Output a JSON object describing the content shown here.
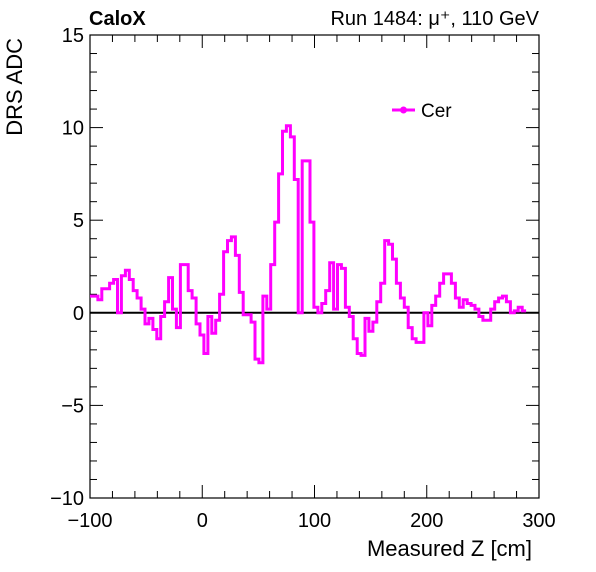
{
  "header": {
    "experiment": "CaloX",
    "run_info": "Run 1484:   μ⁺, 110 GeV"
  },
  "colors": {
    "series": "#ff00ff",
    "axis": "#000000",
    "zero_line": "#000000"
  },
  "chart_data": {
    "type": "line",
    "style": "step-histogram",
    "xlabel": "Measured Z [cm]",
    "ylabel": "DRS ADC",
    "xlim": [
      -100,
      300
    ],
    "ylim": [
      -10,
      15
    ],
    "xticks": [
      "−100",
      "0",
      "100",
      "200",
      "300"
    ],
    "yticks": [
      "−10",
      "−5",
      "0",
      "5",
      "10",
      "15"
    ],
    "xtick_values": [
      -100,
      0,
      100,
      200,
      300
    ],
    "ytick_values": [
      -10,
      -5,
      0,
      5,
      10,
      15
    ],
    "grid": false,
    "zero_line": true,
    "legend_position": "top-right",
    "bin_width": 3.5,
    "series": [
      {
        "name": "Cer",
        "x_start": -100,
        "values": [
          0.9,
          0.9,
          0.7,
          1.3,
          1.3,
          1.6,
          1.8,
          0.0,
          2.0,
          2.3,
          1.8,
          1.2,
          0.8,
          0.2,
          -0.6,
          -0.3,
          -0.9,
          -1.4,
          -0.2,
          0.6,
          1.9,
          0.2,
          -0.8,
          2.6,
          2.6,
          1.2,
          0.8,
          -0.6,
          -1.2,
          -2.2,
          -0.2,
          -1.1,
          -0.4,
          1.0,
          3.3,
          3.9,
          4.1,
          3.1,
          1.1,
          -0.1,
          -0.1,
          -0.5,
          -2.5,
          -2.7,
          0.9,
          0.2,
          2.6,
          4.9,
          7.5,
          9.8,
          10.1,
          9.5,
          7.2,
          0.0,
          8.2,
          8.2,
          4.9,
          0.3,
          0.0,
          0.5,
          1.2,
          2.7,
          0.2,
          2.6,
          2.4,
          0.3,
          -0.2,
          -1.4,
          -2.2,
          -2.3,
          -0.3,
          -1.0,
          -0.5,
          0.6,
          1.6,
          3.9,
          3.7,
          2.9,
          1.6,
          0.8,
          0.3,
          -0.8,
          -1.4,
          -1.6,
          -1.6,
          0.0,
          -0.7,
          0.4,
          0.9,
          1.6,
          2.1,
          2.1,
          1.6,
          0.8,
          0.3,
          0.7,
          0.5,
          0.4,
          0.2,
          -0.2,
          -0.4,
          -0.4,
          0.2,
          0.6,
          0.8,
          0.9,
          0.6,
          0.0,
          0.1,
          0.3,
          0.1
        ]
      }
    ]
  }
}
